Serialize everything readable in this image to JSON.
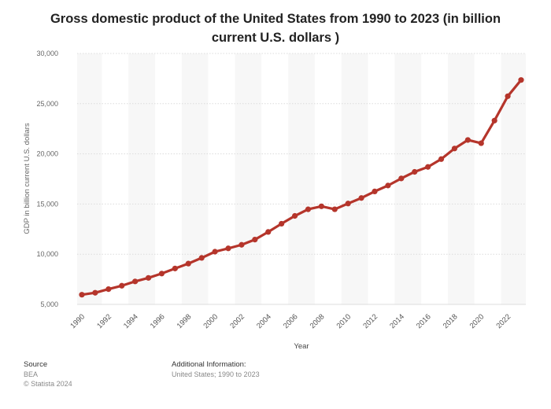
{
  "title_line1": "Gross domestic product of the United States from 1990 to 2023 (in billion",
  "title_line2": "current U.S. dollars )",
  "footer": {
    "source_label": "Source",
    "source_value": "BEA",
    "copyright": "© Statista 2024",
    "info_label": "Additional Information:",
    "info_value": "United States; 1990 to 2023"
  },
  "chart_data": {
    "type": "line",
    "xlabel": "Year",
    "ylabel": "GDP in billion current U.S. dollars",
    "x": [
      1990,
      1991,
      1992,
      1993,
      1994,
      1995,
      1996,
      1997,
      1998,
      1999,
      2000,
      2001,
      2002,
      2003,
      2004,
      2005,
      2006,
      2007,
      2008,
      2009,
      2010,
      2011,
      2012,
      2013,
      2014,
      2015,
      2016,
      2017,
      2018,
      2019,
      2020,
      2021,
      2022,
      2023
    ],
    "series": [
      {
        "color": "#b5352b",
        "values": [
          5963,
          6158,
          6520,
          6859,
          7287,
          7640,
          8073,
          8578,
          9063,
          9631,
          10251,
          10582,
          10936,
          11458,
          12217,
          13039,
          13816,
          14474,
          14770,
          14478,
          15049,
          15600,
          16254,
          16843,
          17551,
          18206,
          18695,
          19477,
          20533,
          21381,
          21060,
          23315,
          25744,
          27361
        ]
      }
    ],
    "xticks": [
      "1990",
      "1992",
      "1994",
      "1996",
      "1998",
      "2000",
      "2002",
      "2004",
      "2006",
      "2008",
      "2010",
      "2012",
      "2014",
      "2016",
      "2018",
      "2020",
      "2022"
    ],
    "yticks": [
      5000,
      10000,
      15000,
      20000,
      25000,
      30000
    ],
    "ylim": [
      5000,
      30000
    ],
    "grid": true,
    "colors": {
      "line": "#b5352b",
      "band": "#f4f4f4"
    }
  }
}
